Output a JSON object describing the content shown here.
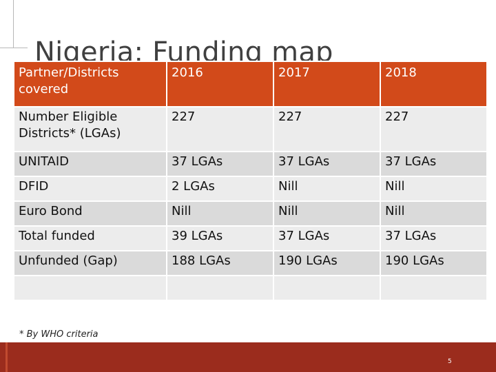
{
  "slide": {
    "title": "Nigeria: Funding map",
    "footnote": "* By WHO criteria",
    "page_number": "5"
  },
  "table": {
    "headers": [
      "Partner/Districts covered",
      "2016",
      "2017",
      "2018"
    ],
    "rows": [
      [
        "Number Eligible Districts* (LGAs)",
        "227",
        "227",
        "227"
      ],
      [
        "UNITAID",
        "37 LGAs",
        "37 LGAs",
        "37 LGAs"
      ],
      [
        "DFID",
        "2 LGAs",
        "Nill",
        "Nill"
      ],
      [
        "Euro Bond",
        "Nill",
        "Nill",
        "Nill"
      ],
      [
        "Total funded",
        "39 LGAs",
        "37 LGAs",
        "37 LGAs"
      ],
      [
        "Unfunded (Gap)",
        "188 LGAs",
        "190 LGAs",
        "190 LGAs"
      ],
      [
        "",
        "",
        "",
        ""
      ]
    ]
  },
  "colors": {
    "header_bg": "#d24a1a",
    "footer_bg": "#9b2c1d",
    "row_bg": "#e9e9e9"
  }
}
